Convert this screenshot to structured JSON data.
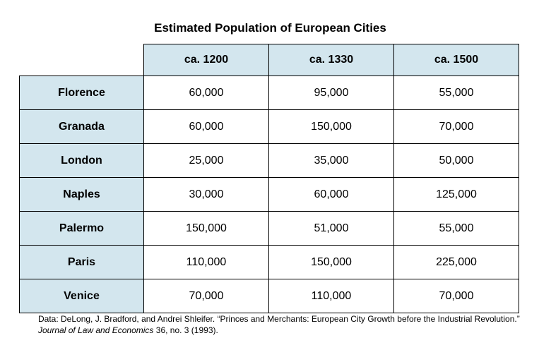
{
  "chart_data": {
    "type": "table",
    "title": "Estimated Population of European Cities",
    "columns": [
      "ca. 1200",
      "ca. 1330",
      "ca. 1500"
    ],
    "rows": [
      {
        "city": "Florence",
        "values": [
          "60,000",
          "95,000",
          "55,000"
        ]
      },
      {
        "city": "Granada",
        "values": [
          "60,000",
          "150,000",
          "70,000"
        ]
      },
      {
        "city": "London",
        "values": [
          "25,000",
          "35,000",
          "50,000"
        ]
      },
      {
        "city": "Naples",
        "values": [
          "30,000",
          "60,000",
          "125,000"
        ]
      },
      {
        "city": "Palermo",
        "values": [
          "150,000",
          "51,000",
          "55,000"
        ]
      },
      {
        "city": "Paris",
        "values": [
          "110,000",
          "150,000",
          "225,000"
        ]
      },
      {
        "city": "Venice",
        "values": [
          "70,000",
          "110,000",
          "70,000"
        ]
      }
    ],
    "source": {
      "prefix": "Data: DeLong, J. Bradford, and Andrei Shleifer. “Princes and Merchants: European City Growth before the Industrial Revolution.” ",
      "journal": "Journal of Law and Economics",
      "suffix": " 36, no. 3 (1993)."
    }
  },
  "colors": {
    "header_fill": "#d3e6ee",
    "border": "#000000"
  }
}
